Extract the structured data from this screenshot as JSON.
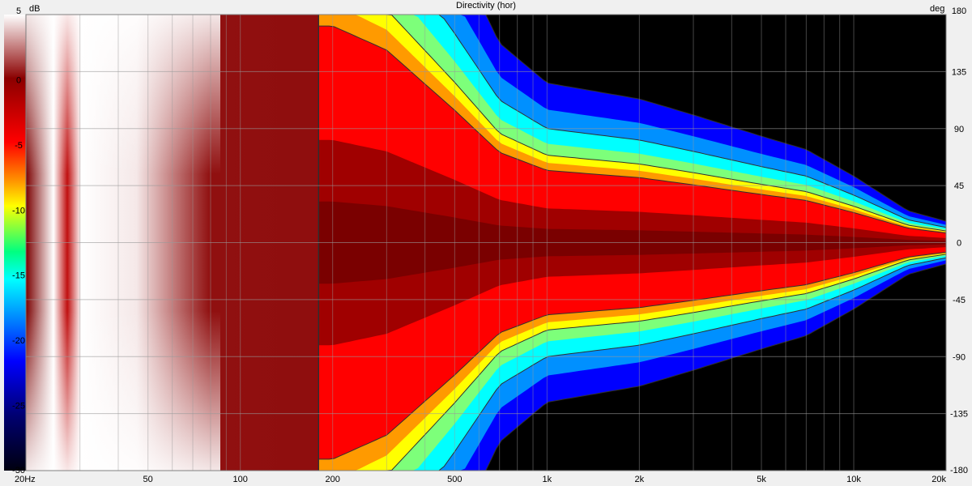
{
  "chart_data": {
    "type": "heatmap",
    "title": "Directivity (hor)",
    "x_axis": {
      "scale": "log",
      "range_hz": [
        20,
        20000
      ],
      "ticks": [
        {
          "value": 20,
          "label": "20Hz"
        },
        {
          "value": 50,
          "label": "50"
        },
        {
          "value": 100,
          "label": "100"
        },
        {
          "value": 200,
          "label": "200"
        },
        {
          "value": 500,
          "label": "500"
        },
        {
          "value": 1000,
          "label": "1k"
        },
        {
          "value": 2000,
          "label": "2k"
        },
        {
          "value": 5000,
          "label": "5k"
        },
        {
          "value": 10000,
          "label": "10k"
        },
        {
          "value": 20000,
          "label": "20k"
        }
      ]
    },
    "y_axis": {
      "unit": "deg",
      "range": [
        -180,
        180
      ],
      "ticks": [
        180,
        135,
        90,
        45,
        0,
        -45,
        -90,
        -135,
        -180
      ]
    },
    "colorbar": {
      "unit": "dB",
      "range": [
        -30,
        5
      ],
      "ticks": [
        5,
        0,
        -5,
        -10,
        -15,
        -20,
        -25,
        -30
      ]
    },
    "grid": true,
    "beamwidth_6db": {
      "freq": [
        20,
        50,
        100,
        200,
        300,
        500,
        700,
        1000,
        2000,
        3000,
        5000,
        7000,
        10000,
        15000,
        20000
      ],
      "half_angle_deg": [
        180,
        180,
        180,
        180,
        160,
        110,
        75,
        60,
        54,
        48,
        40,
        35,
        25,
        12,
        8
      ]
    },
    "colors": {
      "hot": "#ffffff",
      "peak": "#7a0000",
      "red": "#ff0000",
      "yellow": "#ffff00",
      "cyan": "#00ffff",
      "blue": "#0000ff",
      "cold": "#000000"
    }
  }
}
